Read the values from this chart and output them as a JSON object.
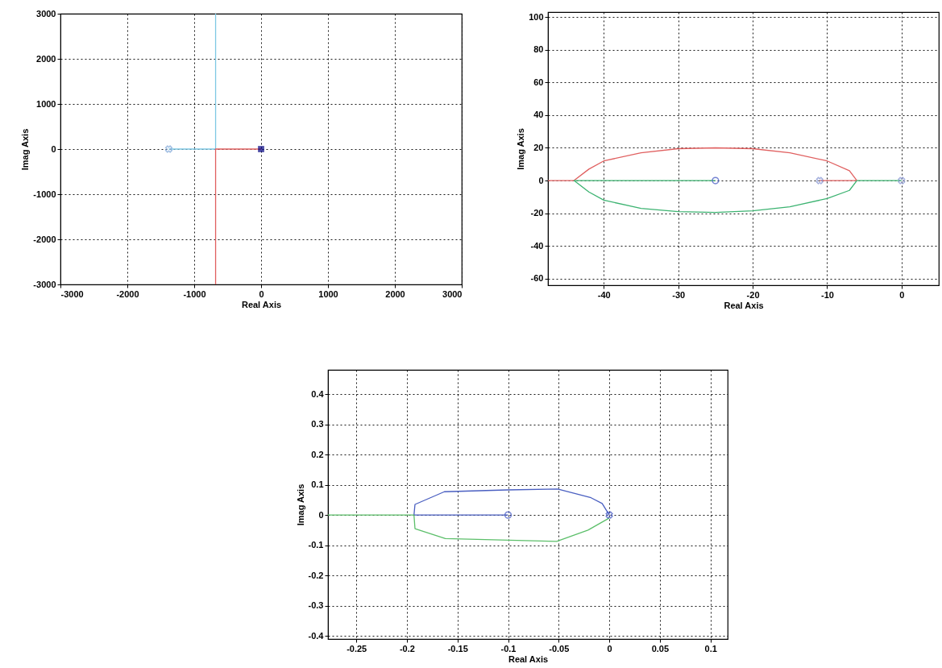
{
  "chart_data": [
    {
      "type": "line",
      "xlabel": "Real Axis",
      "ylabel": "Imag Axis",
      "xlim": [
        -3000,
        3000
      ],
      "ylim": [
        -3000,
        3000
      ],
      "xticks": [
        -3000,
        -2000,
        -1000,
        0,
        1000,
        2000,
        3000
      ],
      "yticks": [
        -3000,
        -2000,
        -1000,
        0,
        1000,
        2000,
        3000
      ],
      "grid": true,
      "series": [
        {
          "color": "#7ec8e3",
          "x": [
            -1380,
            -680,
            -680
          ],
          "values": [
            0,
            0,
            3000
          ]
        },
        {
          "color": "#e06060",
          "x": [
            0,
            -680,
            -680
          ],
          "values": [
            0,
            0,
            -3000
          ]
        },
        {
          "type": "scatter",
          "marker": "cross",
          "color": "#7ea6d8",
          "x": [
            -1380
          ],
          "values": [
            0
          ]
        },
        {
          "type": "scatter",
          "marker": "square",
          "color": "#000080",
          "x": [
            0
          ],
          "values": [
            0
          ]
        }
      ]
    },
    {
      "type": "line",
      "xlabel": "Real Axis",
      "ylabel": "Imag Axis",
      "xlim": [
        -47.5,
        5
      ],
      "ylim": [
        -64,
        103
      ],
      "xticks": [
        -40,
        -30,
        -20,
        -10,
        0
      ],
      "yticks": [
        -60,
        -40,
        -20,
        0,
        20,
        40,
        60,
        80,
        100
      ],
      "grid": true,
      "series": [
        {
          "color": "#e06060",
          "x": [
            -47.5,
            -44,
            -42,
            -40,
            -35,
            -30,
            -25,
            -20,
            -15,
            -10,
            -7,
            -6
          ],
          "values": [
            0,
            0,
            7,
            12,
            17,
            19.5,
            20,
            19.5,
            17,
            12,
            6,
            0
          ]
        },
        {
          "color": "#e06060",
          "x": [
            -11,
            -6
          ],
          "values": [
            0,
            0
          ]
        },
        {
          "color": "#3cb371",
          "x": [
            -44,
            -42,
            -40,
            -35,
            -30,
            -25,
            -20,
            -15,
            -10,
            -7,
            -6
          ],
          "values": [
            0,
            -7,
            -12,
            -17,
            -19,
            -19.5,
            -18.5,
            -16,
            -11,
            -6,
            0
          ]
        },
        {
          "color": "#3cb371",
          "x": [
            -44,
            -25
          ],
          "values": [
            0,
            0
          ]
        },
        {
          "color": "#3cb371",
          "x": [
            -6,
            0
          ],
          "values": [
            0,
            0
          ]
        },
        {
          "type": "scatter",
          "marker": "circle",
          "color": "#3a4fc0",
          "x": [
            -25
          ],
          "values": [
            0
          ]
        },
        {
          "type": "scatter",
          "marker": "cross",
          "color": "#8090d0",
          "x": [
            -11,
            0
          ],
          "values": [
            0,
            0
          ]
        }
      ]
    },
    {
      "type": "line",
      "xlabel": "Real Axis",
      "ylabel": "Imag Axis",
      "xlim": [
        -0.278,
        0.117
      ],
      "ylim": [
        -0.41,
        0.48
      ],
      "xticks": [
        -0.25,
        -0.2,
        -0.15,
        -0.1,
        -0.05,
        0,
        0.05,
        0.1
      ],
      "yticks": [
        -0.4,
        -0.3,
        -0.2,
        -0.1,
        0,
        0.1,
        0.2,
        0.3,
        0.4
      ],
      "grid": true,
      "series": [
        {
          "color": "#4a5fc1",
          "x": [
            0,
            -0.007,
            -0.018,
            -0.051,
            -0.101,
            -0.163,
            -0.192,
            -0.193
          ],
          "values": [
            0,
            0.038,
            0.057,
            0.086,
            0.083,
            0.077,
            0.035,
            0
          ]
        },
        {
          "color": "#4a5fc1",
          "x": [
            -0.193,
            -0.1
          ],
          "values": [
            0,
            0
          ]
        },
        {
          "color": "#5cbf6a",
          "x": [
            -0.193,
            -0.192,
            -0.162,
            -0.052,
            -0.021,
            0
          ],
          "values": [
            0,
            -0.045,
            -0.078,
            -0.087,
            -0.05,
            -0.01
          ]
        },
        {
          "color": "#5cbf6a",
          "x": [
            -0.278,
            -0.193
          ],
          "values": [
            0,
            0
          ]
        },
        {
          "type": "scatter",
          "marker": "circle",
          "color": "#3a4fc0",
          "x": [
            -0.1
          ],
          "values": [
            0
          ]
        },
        {
          "type": "scatter",
          "marker": "cross",
          "color": "#3a4fc0",
          "x": [
            0
          ],
          "values": [
            0
          ]
        }
      ]
    }
  ]
}
